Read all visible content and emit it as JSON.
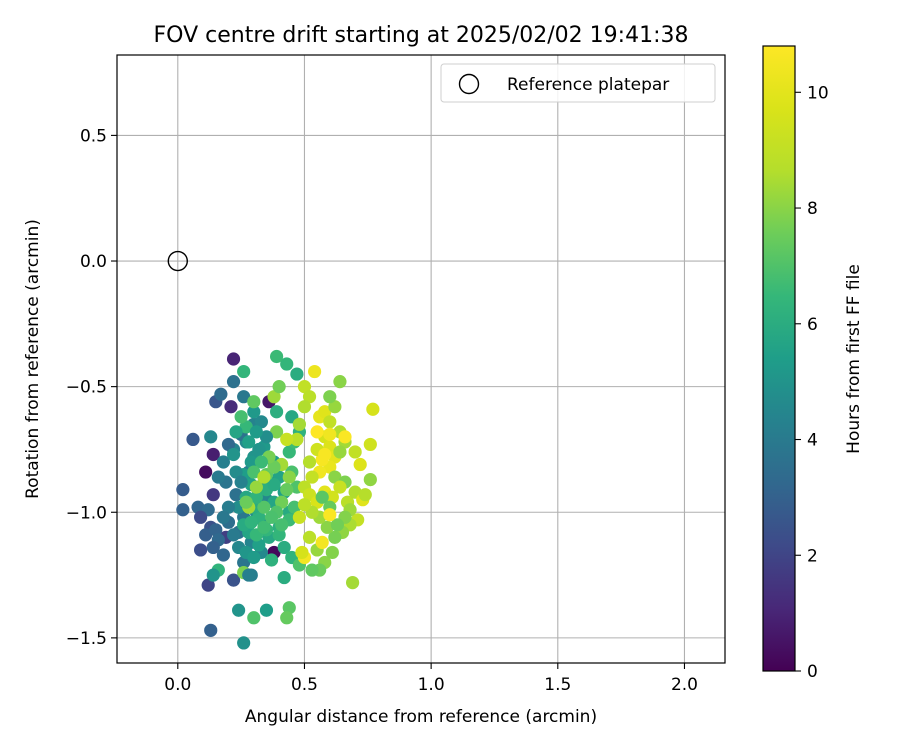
{
  "chart_data": {
    "type": "scatter",
    "title": "FOV centre drift starting at 2025/02/02 19:41:38",
    "xlabel": "Angular distance from reference (arcmin)",
    "ylabel": "Rotation from reference (arcmin)",
    "xlim": [
      -0.24,
      2.16
    ],
    "ylim": [
      -1.6,
      0.82
    ],
    "xticks": [
      0.0,
      0.5,
      1.0,
      1.5,
      2.0
    ],
    "xtick_labels": [
      "0.0",
      "0.5",
      "1.0",
      "1.5",
      "2.0"
    ],
    "yticks": [
      -1.5,
      -1.0,
      -0.5,
      0.0,
      0.5
    ],
    "ytick_labels": [
      "−1.5",
      "−1.0",
      "−0.5",
      "0.0",
      "0.5"
    ],
    "grid": true,
    "legend": {
      "placement": "top-right",
      "entries": [
        "Reference platepar"
      ]
    },
    "reference_point": {
      "name": "Reference platepar",
      "x": 0.0,
      "y": 0.0
    },
    "colorbar": {
      "label": "Hours from first FF file",
      "colormap": "viridis",
      "range": [
        0,
        10.8
      ],
      "ticks": [
        0,
        2,
        4,
        6,
        8,
        10
      ],
      "tick_labels": [
        "0",
        "2",
        "4",
        "6",
        "8",
        "10"
      ]
    },
    "series": [
      {
        "columns": [
          "x",
          "y",
          "hours"
        ],
        "points": [
          [
            0.11,
            -0.84,
            0.3
          ],
          [
            0.38,
            -1.16,
            0.2
          ],
          [
            0.14,
            -0.77,
            0.8
          ],
          [
            0.22,
            -0.39,
            1.0
          ],
          [
            0.21,
            -0.58,
            1.2
          ],
          [
            0.36,
            -0.56,
            0.6
          ],
          [
            0.14,
            -0.93,
            1.6
          ],
          [
            0.19,
            -1.1,
            1.8
          ],
          [
            0.12,
            -1.29,
            2.0
          ],
          [
            0.09,
            -1.15,
            2.3
          ],
          [
            0.22,
            -1.27,
            2.5
          ],
          [
            0.15,
            -0.56,
            2.6
          ],
          [
            0.06,
            -0.71,
            2.7
          ],
          [
            0.02,
            -0.91,
            2.8
          ],
          [
            0.02,
            -0.99,
            3.0
          ],
          [
            0.08,
            -0.98,
            3.2
          ],
          [
            0.12,
            -0.99,
            3.4
          ],
          [
            0.09,
            -1.02,
            2.2
          ],
          [
            0.13,
            -1.06,
            2.4
          ],
          [
            0.11,
            -1.09,
            2.9
          ],
          [
            0.15,
            -1.07,
            3.1
          ],
          [
            0.16,
            -1.11,
            3.3
          ],
          [
            0.2,
            -1.04,
            3.5
          ],
          [
            0.24,
            -1.08,
            3.7
          ],
          [
            0.26,
            -1.02,
            3.9
          ],
          [
            0.23,
            -0.93,
            3.6
          ],
          [
            0.19,
            -0.88,
            3.8
          ],
          [
            0.16,
            -0.86,
            4.0
          ],
          [
            0.18,
            -0.8,
            4.2
          ],
          [
            0.22,
            -0.75,
            4.4
          ],
          [
            0.27,
            -0.72,
            4.6
          ],
          [
            0.14,
            -1.14,
            3.0
          ],
          [
            0.18,
            -1.17,
            3.2
          ],
          [
            0.26,
            -1.2,
            3.8
          ],
          [
            0.29,
            -1.25,
            4.1
          ],
          [
            0.2,
            -0.73,
            3.3
          ],
          [
            0.25,
            -0.69,
            3.7
          ],
          [
            0.3,
            -0.65,
            4.3
          ],
          [
            0.13,
            -0.7,
            4.5
          ],
          [
            0.17,
            -0.53,
            3.4
          ],
          [
            0.22,
            -0.48,
            3.6
          ],
          [
            0.26,
            -0.54,
            3.9
          ],
          [
            0.28,
            -0.84,
            4.0
          ],
          [
            0.32,
            -0.9,
            4.2
          ],
          [
            0.35,
            -0.95,
            4.5
          ],
          [
            0.31,
            -1.0,
            4.7
          ],
          [
            0.34,
            -1.04,
            4.9
          ],
          [
            0.29,
            -1.12,
            4.4
          ],
          [
            0.33,
            -1.16,
            4.6
          ],
          [
            0.24,
            -0.98,
            4.8
          ],
          [
            0.3,
            -0.78,
            5.0
          ],
          [
            0.34,
            -0.74,
            5.2
          ],
          [
            0.38,
            -0.8,
            5.4
          ],
          [
            0.4,
            -0.86,
            5.6
          ],
          [
            0.36,
            -0.88,
            5.3
          ],
          [
            0.42,
            -0.92,
            5.5
          ],
          [
            0.38,
            -0.96,
            5.7
          ],
          [
            0.44,
            -1.0,
            5.9
          ],
          [
            0.4,
            -1.06,
            6.1
          ],
          [
            0.36,
            -1.1,
            5.8
          ],
          [
            0.42,
            -1.14,
            6.0
          ],
          [
            0.37,
            -1.19,
            6.2
          ],
          [
            0.45,
            -1.18,
            6.3
          ],
          [
            0.24,
            -1.39,
            5.0
          ],
          [
            0.35,
            -1.39,
            5.4
          ],
          [
            0.26,
            -1.52,
            4.9
          ],
          [
            0.13,
            -1.47,
            3.0
          ],
          [
            0.3,
            -1.42,
            7.0
          ],
          [
            0.44,
            -1.38,
            7.2
          ],
          [
            0.43,
            -1.42,
            7.4
          ],
          [
            0.42,
            -1.26,
            6.0
          ],
          [
            0.48,
            -1.21,
            7.0
          ],
          [
            0.4,
            -1.09,
            6.4
          ],
          [
            0.44,
            -1.03,
            6.6
          ],
          [
            0.46,
            -0.98,
            6.8
          ],
          [
            0.47,
            -0.9,
            7.0
          ],
          [
            0.45,
            -0.84,
            6.9
          ],
          [
            0.44,
            -0.76,
            6.5
          ],
          [
            0.46,
            -0.72,
            6.7
          ],
          [
            0.48,
            -0.68,
            6.2
          ],
          [
            0.45,
            -0.62,
            5.8
          ],
          [
            0.47,
            -0.45,
            6.0
          ],
          [
            0.43,
            -0.41,
            6.4
          ],
          [
            0.39,
            -0.38,
            6.6
          ],
          [
            0.39,
            -0.6,
            6.1
          ],
          [
            0.38,
            -0.54,
            8.3
          ],
          [
            0.4,
            -0.5,
            7.6
          ],
          [
            0.39,
            -0.68,
            7.8
          ],
          [
            0.5,
            -0.5,
            9.0
          ],
          [
            0.52,
            -0.54,
            8.8
          ],
          [
            0.5,
            -0.58,
            8.6
          ],
          [
            0.48,
            -0.65,
            8.4
          ],
          [
            0.47,
            -0.71,
            8.8
          ],
          [
            0.54,
            -0.44,
            10.3
          ],
          [
            0.56,
            -0.62,
            10.1
          ],
          [
            0.58,
            -0.6,
            9.9
          ],
          [
            0.6,
            -0.64,
            9.0
          ],
          [
            0.62,
            -0.58,
            8.2
          ],
          [
            0.64,
            -0.48,
            8.0
          ],
          [
            0.6,
            -0.54,
            7.8
          ],
          [
            0.58,
            -0.7,
            9.6
          ],
          [
            0.6,
            -0.74,
            9.8
          ],
          [
            0.62,
            -0.78,
            10.0
          ],
          [
            0.6,
            -0.82,
            10.2
          ],
          [
            0.64,
            -0.68,
            8.6
          ],
          [
            0.66,
            -0.72,
            8.4
          ],
          [
            0.64,
            -0.76,
            8.2
          ],
          [
            0.62,
            -0.86,
            8.0
          ],
          [
            0.66,
            -0.88,
            7.8
          ],
          [
            0.56,
            -0.84,
            10.4
          ],
          [
            0.57,
            -0.79,
            10.6
          ],
          [
            0.55,
            -0.75,
            9.4
          ],
          [
            0.52,
            -0.8,
            8.7
          ],
          [
            0.53,
            -0.86,
            9.1
          ],
          [
            0.5,
            -0.9,
            8.9
          ],
          [
            0.52,
            -0.93,
            9.3
          ],
          [
            0.55,
            -0.96,
            9.7
          ],
          [
            0.58,
            -0.92,
            10.0
          ],
          [
            0.61,
            -0.94,
            9.5
          ],
          [
            0.64,
            -0.9,
            9.2
          ],
          [
            0.67,
            -0.96,
            8.8
          ],
          [
            0.7,
            -0.92,
            8.6
          ],
          [
            0.72,
            -0.81,
            9.8
          ],
          [
            0.76,
            -0.73,
            9.4
          ],
          [
            0.77,
            -0.59,
            9.6
          ],
          [
            0.7,
            -0.76,
            9.0
          ],
          [
            0.73,
            -0.95,
            9.9
          ],
          [
            0.71,
            -1.03,
            9.1
          ],
          [
            0.68,
            -1.05,
            8.5
          ],
          [
            0.65,
            -1.08,
            8.1
          ],
          [
            0.62,
            -1.1,
            7.7
          ],
          [
            0.59,
            -1.06,
            8.0
          ],
          [
            0.56,
            -1.02,
            8.3
          ],
          [
            0.53,
            -1.0,
            8.6
          ],
          [
            0.5,
            -0.97,
            8.9
          ],
          [
            0.48,
            -1.02,
            9.2
          ],
          [
            0.52,
            -1.1,
            8.8
          ],
          [
            0.55,
            -1.15,
            8.2
          ],
          [
            0.58,
            -1.2,
            8.0
          ],
          [
            0.61,
            -1.16,
            7.9
          ],
          [
            0.56,
            -1.23,
            7.5
          ],
          [
            0.53,
            -1.23,
            7.3
          ],
          [
            0.69,
            -1.28,
            8.4
          ],
          [
            0.5,
            -1.18,
            10.5
          ],
          [
            0.49,
            -1.16,
            9.6
          ],
          [
            0.76,
            -0.87,
            8.1
          ],
          [
            0.74,
            -0.93,
            8.7
          ],
          [
            0.68,
            -0.99,
            8.3
          ],
          [
            0.66,
            -1.02,
            7.9
          ],
          [
            0.63,
            -1.05,
            7.6
          ],
          [
            0.6,
            -0.98,
            7.4
          ],
          [
            0.57,
            -0.94,
            7.2
          ],
          [
            0.6,
            -1.01,
            10.7
          ],
          [
            0.57,
            -1.12,
            10.5
          ],
          [
            0.66,
            -0.7,
            10.7
          ],
          [
            0.58,
            -0.77,
            10.6
          ],
          [
            0.55,
            -0.68,
            10.8
          ],
          [
            0.6,
            -0.69,
            10.4
          ],
          [
            0.43,
            -0.71,
            9.2
          ],
          [
            0.41,
            -0.81,
            8.4
          ],
          [
            0.44,
            -0.86,
            8.0
          ],
          [
            0.43,
            -0.91,
            7.4
          ],
          [
            0.41,
            -0.96,
            7.6
          ],
          [
            0.39,
            -1.0,
            7.0
          ],
          [
            0.41,
            -1.05,
            6.8
          ],
          [
            0.35,
            -1.07,
            6.4
          ],
          [
            0.32,
            -1.02,
            6.2
          ],
          [
            0.3,
            -0.98,
            6.0
          ],
          [
            0.27,
            -0.94,
            5.8
          ],
          [
            0.29,
            -0.89,
            5.6
          ],
          [
            0.26,
            -0.85,
            5.4
          ],
          [
            0.29,
            -0.8,
            5.2
          ],
          [
            0.32,
            -0.75,
            5.0
          ],
          [
            0.35,
            -0.7,
            4.8
          ],
          [
            0.33,
            -0.64,
            4.6
          ],
          [
            0.3,
            -0.6,
            5.2
          ],
          [
            0.27,
            -0.66,
            6.5
          ],
          [
            0.25,
            -0.62,
            6.8
          ],
          [
            0.23,
            -0.68,
            5.7
          ],
          [
            0.22,
            -0.77,
            5.0
          ],
          [
            0.23,
            -0.84,
            4.7
          ],
          [
            0.25,
            -0.88,
            4.3
          ],
          [
            0.2,
            -0.98,
            4.1
          ],
          [
            0.18,
            -1.02,
            3.9
          ],
          [
            0.22,
            -1.09,
            4.0
          ],
          [
            0.24,
            -1.14,
            4.5
          ],
          [
            0.27,
            -1.16,
            5.1
          ],
          [
            0.3,
            -1.18,
            5.3
          ],
          [
            0.32,
            -1.13,
            5.5
          ],
          [
            0.28,
            -1.08,
            5.7
          ],
          [
            0.26,
            -1.05,
            5.9
          ],
          [
            0.29,
            -1.04,
            6.3
          ],
          [
            0.31,
            -1.09,
            6.5
          ],
          [
            0.34,
            -1.06,
            6.7
          ],
          [
            0.37,
            -1.02,
            6.9
          ],
          [
            0.34,
            -0.98,
            7.1
          ],
          [
            0.31,
            -0.94,
            6.3
          ],
          [
            0.35,
            -0.91,
            6.1
          ],
          [
            0.38,
            -0.89,
            5.9
          ],
          [
            0.35,
            -0.85,
            7.3
          ],
          [
            0.38,
            -0.82,
            7.5
          ],
          [
            0.36,
            -0.78,
            7.7
          ],
          [
            0.33,
            -0.8,
            6.6
          ],
          [
            0.3,
            -0.84,
            6.9
          ],
          [
            0.28,
            -0.72,
            5.5
          ],
          [
            0.31,
            -0.68,
            5.3
          ],
          [
            0.3,
            -0.56,
            7.3
          ],
          [
            0.26,
            -0.44,
            6.4
          ],
          [
            0.28,
            -0.98,
            8.4
          ],
          [
            0.26,
            -1.24,
            7.8
          ],
          [
            0.28,
            -1.25,
            4.2
          ],
          [
            0.16,
            -1.23,
            6.3
          ],
          [
            0.14,
            -1.25,
            5.0
          ],
          [
            0.27,
            -0.96,
            7.5
          ],
          [
            0.31,
            -0.9,
            8.2
          ],
          [
            0.34,
            -0.86,
            8.6
          ]
        ]
      }
    ]
  }
}
